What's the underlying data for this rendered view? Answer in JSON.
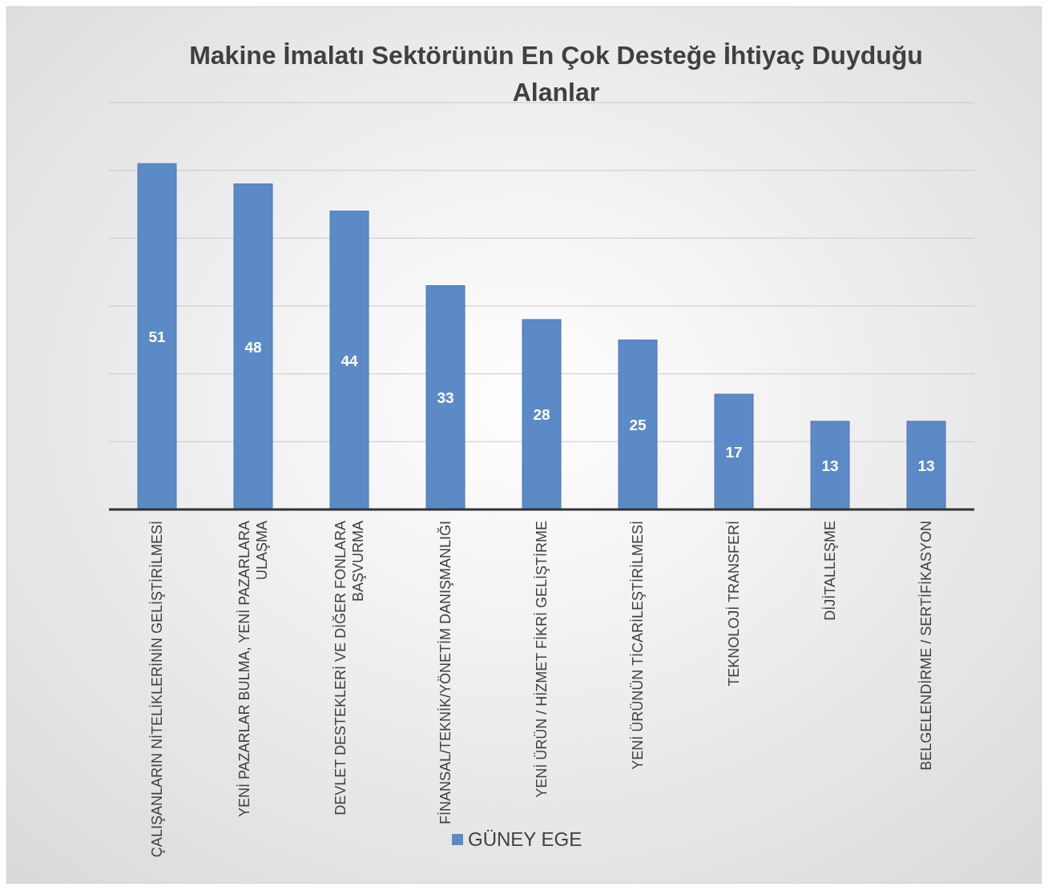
{
  "chart_data": {
    "type": "bar",
    "title": "Makine İmalatı Sektörünün En Çok Desteğe İhtiyaç Duyduğu Alanlar",
    "categories": [
      "ÇALIŞANLARIN NİTELİKLERİNİN GELİŞTİRİLMESİ",
      "YENİ PAZARLAR BULMA, YENİ PAZARLARA ULAŞMA",
      "DEVLET DESTEKLERİ VE DİĞER FONLARA BAŞVURMA",
      "FİNANSAL/TEKNİK/YÖNETİM DANIŞMANLIĞI",
      "YENİ ÜRÜN / HİZMET FİKRİ GELİŞTİRME",
      "YENİ ÜRÜNÜN TİCARİLEŞTİRİLMESİ",
      "TEKNOLOJİ TRANSFERİ",
      "DİJİTALLEŞME",
      "BELGELENDİRME / SERTİFİKASYON"
    ],
    "series": [
      {
        "name": "GÜNEY EGE",
        "color": "#5b8ac6",
        "values": [
          51,
          48,
          44,
          33,
          28,
          25,
          17,
          13,
          13
        ]
      }
    ],
    "ylim": [
      0,
      60
    ],
    "yticks": [
      {
        "value": 0,
        "label": null
      },
      {
        "value": 10,
        "label": null
      },
      {
        "value": 20,
        "label": null
      },
      {
        "value": 30,
        "label": null
      },
      {
        "value": 40,
        "label": null
      },
      {
        "value": 50,
        "label": null
      },
      {
        "value": 60,
        "label": null
      }
    ],
    "tick_labels": "x",
    "grid": "y",
    "data_labels": true,
    "legend": "bottom"
  }
}
